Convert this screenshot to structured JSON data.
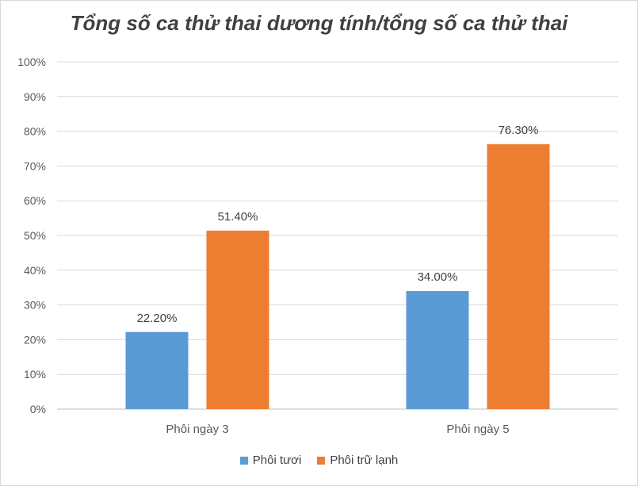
{
  "chart_data": {
    "type": "bar",
    "title": "Tổng số ca thử thai dương tính/tổng số ca thử thai",
    "categories": [
      "Phôi ngày 3",
      "Phôi ngày 5"
    ],
    "series": [
      {
        "name": "Phôi tươi",
        "values": [
          22.2,
          34.0
        ],
        "labels": [
          "22.20%",
          "34.00%"
        ],
        "color": "#5B9BD5"
      },
      {
        "name": "Phôi trữ lạnh",
        "values": [
          51.4,
          76.3
        ],
        "labels": [
          "51.40%",
          "76.30%"
        ],
        "color": "#ED7D31"
      }
    ],
    "ylim": [
      0,
      100
    ],
    "yticks": [
      "0%",
      "10%",
      "20%",
      "30%",
      "40%",
      "50%",
      "60%",
      "70%",
      "80%",
      "90%",
      "100%"
    ],
    "grid": true,
    "legend_position": "bottom"
  }
}
